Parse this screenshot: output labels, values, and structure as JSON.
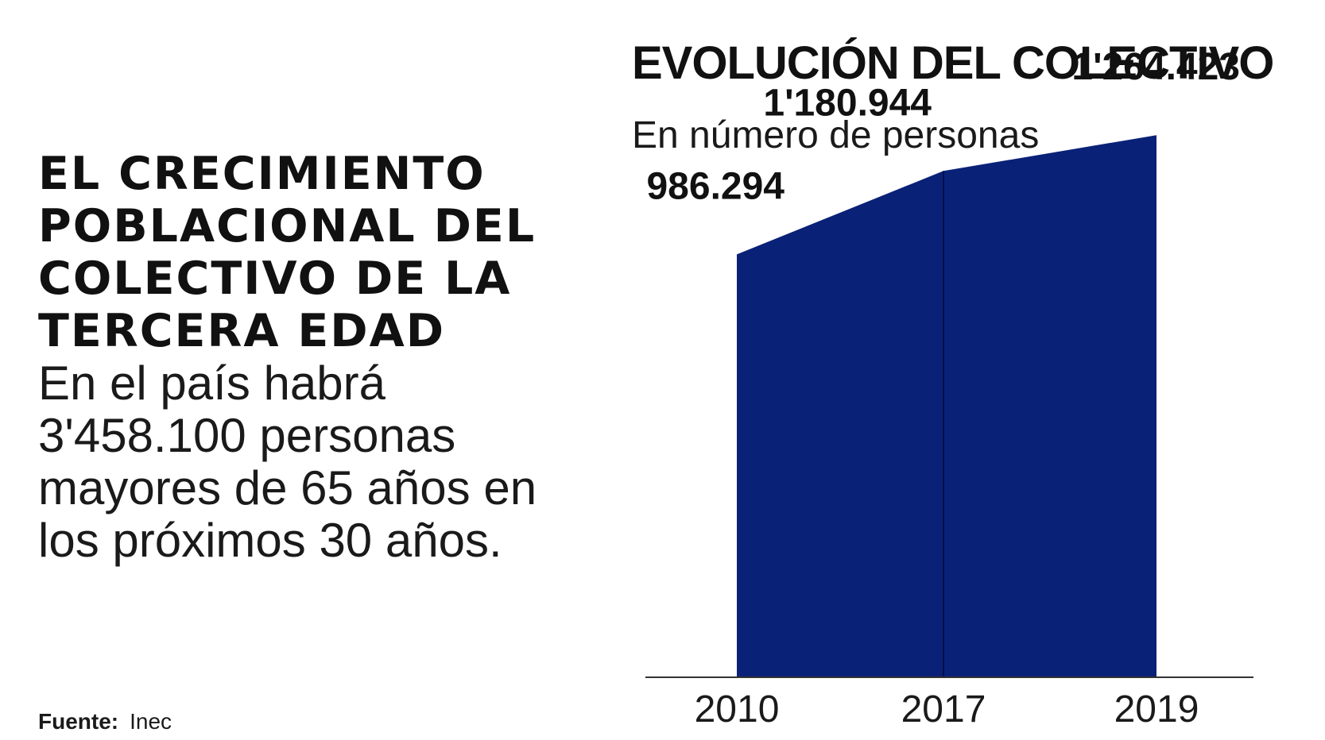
{
  "headline": {
    "title": "EL CRECIMIENTO POBLACIONAL DEL COLECTIVO DE LA TERCERA EDAD",
    "text": "En el país habrá 3'458.100 personas mayores de 65 años en los próximos 30 años."
  },
  "source": {
    "label": "Fuente:",
    "value": "Inec"
  },
  "colors": {
    "area_fill": "#0a2178",
    "axis": "#333333"
  },
  "chart_data": {
    "type": "area",
    "title": "EVOLUCIÓN DEL COLECTIVO",
    "subtitle": "En número de personas",
    "xlabel": "",
    "ylabel": "",
    "grid": false,
    "categories": [
      "2010",
      "2017",
      "2019"
    ],
    "values": [
      986294,
      1180944,
      1264423
    ],
    "value_labels": [
      "986.294",
      "1'180.944",
      "1'264.423"
    ],
    "ylim": [
      0,
      1450000
    ]
  }
}
